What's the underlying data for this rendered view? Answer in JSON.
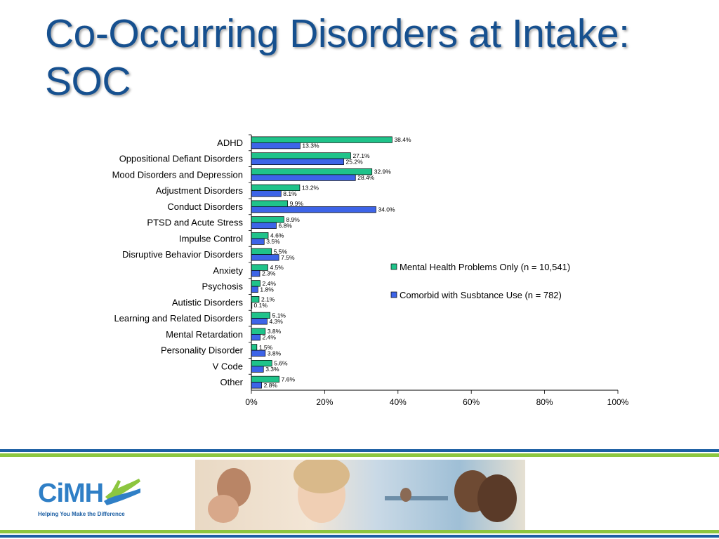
{
  "title": "Co-Occurring Disorders at Intake: SOC",
  "colors": {
    "title": "#16508f",
    "series_mental": "#1fc38a",
    "series_comorbid": "#3d64e8",
    "stripe_blue": "#1c5fa4",
    "stripe_green": "#8cc63f"
  },
  "chart_data": {
    "type": "bar",
    "orientation": "horizontal",
    "categories": [
      "ADHD",
      "Oppositional Defiant Disorders",
      "Mood Disorders and Depression",
      "Adjustment Disorders",
      "Conduct Disorders",
      "PTSD and Acute Stress",
      "Impulse Control",
      "Disruptive Behavior Disorders",
      "Anxiety",
      "Psychosis",
      "Autistic Disorders",
      "Learning and Related Disorders",
      "Mental Retardation",
      "Personality Disorder",
      "V Code",
      "Other"
    ],
    "series": [
      {
        "name": "Mental Health Problems Only (n = 10,541)",
        "values": [
          38.4,
          27.1,
          32.9,
          13.2,
          9.9,
          8.9,
          4.6,
          5.5,
          4.5,
          2.4,
          2.1,
          5.1,
          3.8,
          1.5,
          5.6,
          7.6
        ],
        "labels": [
          "38.4%",
          "27.1%",
          "32.9%",
          "13.2%",
          "9.9%",
          "8.9%",
          "4.6%",
          "5.5%",
          "4.5%",
          "2.4%",
          "2.1%",
          "5.1%",
          "3.8%",
          "1.5%",
          "5.6%",
          "7.6%"
        ]
      },
      {
        "name": "Comorbid with Susbtance Use (n = 782)",
        "values": [
          13.3,
          25.2,
          28.4,
          8.1,
          34.0,
          6.8,
          3.5,
          7.5,
          2.3,
          1.8,
          0.1,
          4.3,
          2.4,
          3.8,
          3.3,
          2.8
        ],
        "labels": [
          "13.3%",
          "25.2%",
          "28.4%",
          "8.1%",
          "34.0%",
          "6.8%",
          "3.5%",
          "7.5%",
          "2.3%",
          "1.8%",
          "0.1%",
          "4.3%",
          "2.4%",
          "3.8%",
          "3.3%",
          "2.8%"
        ]
      }
    ],
    "xlim": [
      0,
      100
    ],
    "xticks": [
      "0%",
      "20%",
      "40%",
      "60%",
      "80%",
      "100%"
    ],
    "legend_position": "right",
    "grid": false
  },
  "footer": {
    "logo_text": "CiMH",
    "tagline": "Helping You Make the Difference"
  }
}
